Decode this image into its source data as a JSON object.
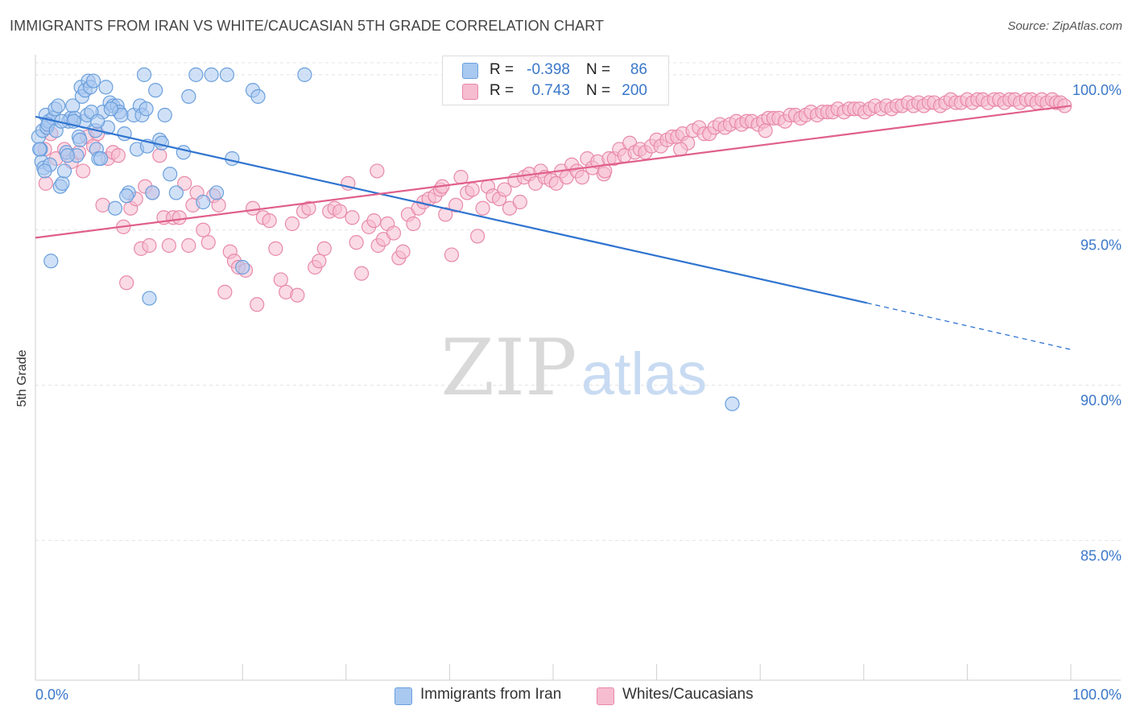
{
  "header": {
    "title": "IMMIGRANTS FROM IRAN VS WHITE/CAUCASIAN 5TH GRADE CORRELATION CHART",
    "source": "Source: ZipAtlas.com"
  },
  "watermark": {
    "zip": "ZIP",
    "atlas": "atlas"
  },
  "stats_box": {
    "rows": [
      {
        "r_label": "R =",
        "r_value": "-0.398",
        "n_label": "N =",
        "n_value": "86",
        "color": "#a9c9f0",
        "border": "#6a9fdc"
      },
      {
        "r_label": "R =",
        "r_value": "0.743",
        "n_label": "N =",
        "n_value": "200",
        "color": "#f6bcd0",
        "border": "#e889a9"
      }
    ]
  },
  "legend": {
    "items": [
      {
        "label": "Immigrants from Iran",
        "color": "#a9c9f0",
        "border": "#6a9fdc"
      },
      {
        "label": "Whites/Caucasians",
        "color": "#f6bcd0",
        "border": "#e889a9"
      }
    ]
  },
  "chart_data": {
    "type": "scatter",
    "title": "IMMIGRANTS FROM IRAN VS WHITE/CAUCASIAN 5TH GRADE CORRELATION CHART",
    "xlabel": "",
    "ylabel": "5th Grade",
    "xlim": [
      0,
      100
    ],
    "ylim": [
      80.5,
      100.8
    ],
    "x_tick_labels": [
      "0.0%",
      "100.0%"
    ],
    "y_ticks": [
      85,
      90,
      95,
      100
    ],
    "y_tick_labels": [
      "85.0%",
      "90.0%",
      "95.0%",
      "100.0%"
    ],
    "grid": true,
    "series": [
      {
        "name": "Immigrants from Iran",
        "color": "#a9c9f0",
        "stroke": "#6a9fdc",
        "line_color": "#2f74d0",
        "trend": {
          "x0": 0,
          "y0": 98.65,
          "x1": 80.3,
          "y1": 92.65,
          "dash_to_x": 100,
          "dash_to_y": 91.15
        },
        "points": [
          [
            0.3,
            98.0
          ],
          [
            0.5,
            97.6
          ],
          [
            0.6,
            97.2
          ],
          [
            0.7,
            98.2
          ],
          [
            0.8,
            97.0
          ],
          [
            1.0,
            98.7
          ],
          [
            1.1,
            98.3
          ],
          [
            1.3,
            98.5
          ],
          [
            1.4,
            97.1
          ],
          [
            1.5,
            94.0
          ],
          [
            1.7,
            98.6
          ],
          [
            1.9,
            98.9
          ],
          [
            2.2,
            99.0
          ],
          [
            2.4,
            96.4
          ],
          [
            2.6,
            96.5
          ],
          [
            2.8,
            96.9
          ],
          [
            3.0,
            97.5
          ],
          [
            3.2,
            98.5
          ],
          [
            3.4,
            98.6
          ],
          [
            3.6,
            99.0
          ],
          [
            3.8,
            98.6
          ],
          [
            4.0,
            97.4
          ],
          [
            4.2,
            98.0
          ],
          [
            4.4,
            99.6
          ],
          [
            4.5,
            99.3
          ],
          [
            4.7,
            98.5
          ],
          [
            4.8,
            99.5
          ],
          [
            5.0,
            98.7
          ],
          [
            5.1,
            99.8
          ],
          [
            5.3,
            99.6
          ],
          [
            5.6,
            99.8
          ],
          [
            5.8,
            98.2
          ],
          [
            5.9,
            97.6
          ],
          [
            6.1,
            97.3
          ],
          [
            6.3,
            97.3
          ],
          [
            6.5,
            98.8
          ],
          [
            6.8,
            99.6
          ],
          [
            7.0,
            98.3
          ],
          [
            7.2,
            99.1
          ],
          [
            7.5,
            99.0
          ],
          [
            7.7,
            95.7
          ],
          [
            7.9,
            99.0
          ],
          [
            8.1,
            98.8
          ],
          [
            8.3,
            98.7
          ],
          [
            8.6,
            98.1
          ],
          [
            9.0,
            96.2
          ],
          [
            9.5,
            98.7
          ],
          [
            9.8,
            97.6
          ],
          [
            10.1,
            99.0
          ],
          [
            10.3,
            98.7
          ],
          [
            10.5,
            100.0
          ],
          [
            10.8,
            97.7
          ],
          [
            11.0,
            92.8
          ],
          [
            11.3,
            96.2
          ],
          [
            11.6,
            99.5
          ],
          [
            12.0,
            97.9
          ],
          [
            12.5,
            98.7
          ],
          [
            13.0,
            96.8
          ],
          [
            13.6,
            96.2
          ],
          [
            14.3,
            97.5
          ],
          [
            14.8,
            99.3
          ],
          [
            15.5,
            100.0
          ],
          [
            16.2,
            95.9
          ],
          [
            17.0,
            100.0
          ],
          [
            18.5,
            100.0
          ],
          [
            19.0,
            97.3
          ],
          [
            20.0,
            93.8
          ],
          [
            21.0,
            99.5
          ],
          [
            21.5,
            99.3
          ],
          [
            26.0,
            100.0
          ],
          [
            0.4,
            97.6
          ],
          [
            0.9,
            96.9
          ],
          [
            1.2,
            98.4
          ],
          [
            2.0,
            98.2
          ],
          [
            2.5,
            98.5
          ],
          [
            3.1,
            97.4
          ],
          [
            3.7,
            98.5
          ],
          [
            4.3,
            97.9
          ],
          [
            5.4,
            98.8
          ],
          [
            6.0,
            98.5
          ],
          [
            7.3,
            98.9
          ],
          [
            8.8,
            96.1
          ],
          [
            10.7,
            98.9
          ],
          [
            12.2,
            97.8
          ],
          [
            17.5,
            96.2
          ],
          [
            67.3,
            89.4
          ]
        ]
      },
      {
        "name": "Whites/Caucasians",
        "color": "#f6bcd0",
        "stroke": "#e889a9",
        "line_color": "#e0608c",
        "trend": {
          "x0": 0,
          "y0": 94.75,
          "x1": 100,
          "y1": 99.0
        },
        "points": [
          [
            0.9,
            97.6
          ],
          [
            1.0,
            96.5
          ],
          [
            1.5,
            98.1
          ],
          [
            2.0,
            97.3
          ],
          [
            2.8,
            97.6
          ],
          [
            3.5,
            97.2
          ],
          [
            4.2,
            97.5
          ],
          [
            4.6,
            96.9
          ],
          [
            5.0,
            98.0
          ],
          [
            5.6,
            97.7
          ],
          [
            6.0,
            98.1
          ],
          [
            6.5,
            95.8
          ],
          [
            7.0,
            97.3
          ],
          [
            7.5,
            97.5
          ],
          [
            8.0,
            97.4
          ],
          [
            8.5,
            95.1
          ],
          [
            8.8,
            93.3
          ],
          [
            9.2,
            95.7
          ],
          [
            9.7,
            96.0
          ],
          [
            10.2,
            94.4
          ],
          [
            10.6,
            96.4
          ],
          [
            11.0,
            94.5
          ],
          [
            11.3,
            96.2
          ],
          [
            12.0,
            97.4
          ],
          [
            12.4,
            95.4
          ],
          [
            12.9,
            94.5
          ],
          [
            13.3,
            95.4
          ],
          [
            13.9,
            95.4
          ],
          [
            14.4,
            96.5
          ],
          [
            14.8,
            94.5
          ],
          [
            15.2,
            95.8
          ],
          [
            15.6,
            96.2
          ],
          [
            16.2,
            95.0
          ],
          [
            16.7,
            94.6
          ],
          [
            17.2,
            96.1
          ],
          [
            17.7,
            95.8
          ],
          [
            18.3,
            93.0
          ],
          [
            18.8,
            94.3
          ],
          [
            19.2,
            94.0
          ],
          [
            19.6,
            93.8
          ],
          [
            20.3,
            93.7
          ],
          [
            21.0,
            95.7
          ],
          [
            21.4,
            92.6
          ],
          [
            22.0,
            95.4
          ],
          [
            22.6,
            95.3
          ],
          [
            23.2,
            94.4
          ],
          [
            23.7,
            93.4
          ],
          [
            24.2,
            93.0
          ],
          [
            24.8,
            95.2
          ],
          [
            25.3,
            92.9
          ],
          [
            25.9,
            95.6
          ],
          [
            26.4,
            95.7
          ],
          [
            27.0,
            93.8
          ],
          [
            27.4,
            94.0
          ],
          [
            27.9,
            94.4
          ],
          [
            28.4,
            95.6
          ],
          [
            28.9,
            95.7
          ],
          [
            29.4,
            95.6
          ],
          [
            30.2,
            96.5
          ],
          [
            30.6,
            95.4
          ],
          [
            31.0,
            94.6
          ],
          [
            31.5,
            93.6
          ],
          [
            32.2,
            95.1
          ],
          [
            32.7,
            95.3
          ],
          [
            33.1,
            94.5
          ],
          [
            33.6,
            94.7
          ],
          [
            34.0,
            95.2
          ],
          [
            34.6,
            94.9
          ],
          [
            35.1,
            94.1
          ],
          [
            35.5,
            94.3
          ],
          [
            36.0,
            95.5
          ],
          [
            36.5,
            95.2
          ],
          [
            37.0,
            95.7
          ],
          [
            37.5,
            95.9
          ],
          [
            38.0,
            96.0
          ],
          [
            38.6,
            96.1
          ],
          [
            39.1,
            96.3
          ],
          [
            39.6,
            95.5
          ],
          [
            40.2,
            94.2
          ],
          [
            40.6,
            95.8
          ],
          [
            41.1,
            96.7
          ],
          [
            41.7,
            96.2
          ],
          [
            42.2,
            96.3
          ],
          [
            42.7,
            94.8
          ],
          [
            43.2,
            95.7
          ],
          [
            43.7,
            96.4
          ],
          [
            44.2,
            96.1
          ],
          [
            44.8,
            96.0
          ],
          [
            45.3,
            96.3
          ],
          [
            45.8,
            95.7
          ],
          [
            46.3,
            96.6
          ],
          [
            46.8,
            95.9
          ],
          [
            47.2,
            96.7
          ],
          [
            47.7,
            96.8
          ],
          [
            48.3,
            96.5
          ],
          [
            48.8,
            96.9
          ],
          [
            49.2,
            96.7
          ],
          [
            49.8,
            96.6
          ],
          [
            50.3,
            96.5
          ],
          [
            50.8,
            96.9
          ],
          [
            51.3,
            96.7
          ],
          [
            51.8,
            97.1
          ],
          [
            52.3,
            96.9
          ],
          [
            52.8,
            96.7
          ],
          [
            53.3,
            97.3
          ],
          [
            53.8,
            97.0
          ],
          [
            54.3,
            97.2
          ],
          [
            54.9,
            96.8
          ],
          [
            55.4,
            97.3
          ],
          [
            55.9,
            97.3
          ],
          [
            56.4,
            97.6
          ],
          [
            56.9,
            97.4
          ],
          [
            57.4,
            97.8
          ],
          [
            57.9,
            97.5
          ],
          [
            58.4,
            97.6
          ],
          [
            58.9,
            97.5
          ],
          [
            59.5,
            97.7
          ],
          [
            60.0,
            97.9
          ],
          [
            60.4,
            97.7
          ],
          [
            61.0,
            97.9
          ],
          [
            61.5,
            98.0
          ],
          [
            62.0,
            98.0
          ],
          [
            62.5,
            98.1
          ],
          [
            63.0,
            97.8
          ],
          [
            63.5,
            98.2
          ],
          [
            64.1,
            98.3
          ],
          [
            64.6,
            98.1
          ],
          [
            65.1,
            98.1
          ],
          [
            65.6,
            98.3
          ],
          [
            66.1,
            98.4
          ],
          [
            66.6,
            98.3
          ],
          [
            67.1,
            98.4
          ],
          [
            67.7,
            98.5
          ],
          [
            68.2,
            98.4
          ],
          [
            68.7,
            98.5
          ],
          [
            69.2,
            98.5
          ],
          [
            69.8,
            98.4
          ],
          [
            70.3,
            98.5
          ],
          [
            70.8,
            98.6
          ],
          [
            71.3,
            98.6
          ],
          [
            71.8,
            98.6
          ],
          [
            72.4,
            98.5
          ],
          [
            72.9,
            98.7
          ],
          [
            73.4,
            98.7
          ],
          [
            73.9,
            98.6
          ],
          [
            74.4,
            98.7
          ],
          [
            74.9,
            98.8
          ],
          [
            75.5,
            98.7
          ],
          [
            76.0,
            98.8
          ],
          [
            76.5,
            98.8
          ],
          [
            77.0,
            98.8
          ],
          [
            77.5,
            98.9
          ],
          [
            78.1,
            98.8
          ],
          [
            78.6,
            98.9
          ],
          [
            79.1,
            98.9
          ],
          [
            79.6,
            98.9
          ],
          [
            80.1,
            98.8
          ],
          [
            80.6,
            98.9
          ],
          [
            81.1,
            99.0
          ],
          [
            81.7,
            98.9
          ],
          [
            82.2,
            99.0
          ],
          [
            82.7,
            98.9
          ],
          [
            83.2,
            99.0
          ],
          [
            83.7,
            99.0
          ],
          [
            84.3,
            99.1
          ],
          [
            84.8,
            99.0
          ],
          [
            85.3,
            99.1
          ],
          [
            85.8,
            99.0
          ],
          [
            86.3,
            99.1
          ],
          [
            86.8,
            99.1
          ],
          [
            87.4,
            99.0
          ],
          [
            87.9,
            99.1
          ],
          [
            88.4,
            99.2
          ],
          [
            88.9,
            99.1
          ],
          [
            89.4,
            99.1
          ],
          [
            90.0,
            99.2
          ],
          [
            90.5,
            99.1
          ],
          [
            91.0,
            99.2
          ],
          [
            91.5,
            99.2
          ],
          [
            92.0,
            99.1
          ],
          [
            92.6,
            99.2
          ],
          [
            93.1,
            99.2
          ],
          [
            93.6,
            99.1
          ],
          [
            94.1,
            99.2
          ],
          [
            94.6,
            99.2
          ],
          [
            95.1,
            99.1
          ],
          [
            95.7,
            99.2
          ],
          [
            96.2,
            99.2
          ],
          [
            96.7,
            99.1
          ],
          [
            97.2,
            99.2
          ],
          [
            97.7,
            99.1
          ],
          [
            98.2,
            99.2
          ],
          [
            98.6,
            99.1
          ],
          [
            99.0,
            99.1
          ],
          [
            99.4,
            99.0
          ],
          [
            33.0,
            96.9
          ],
          [
            39.3,
            96.4
          ],
          [
            55.0,
            96.9
          ],
          [
            62.3,
            97.6
          ],
          [
            70.5,
            98.2
          ]
        ]
      }
    ]
  }
}
